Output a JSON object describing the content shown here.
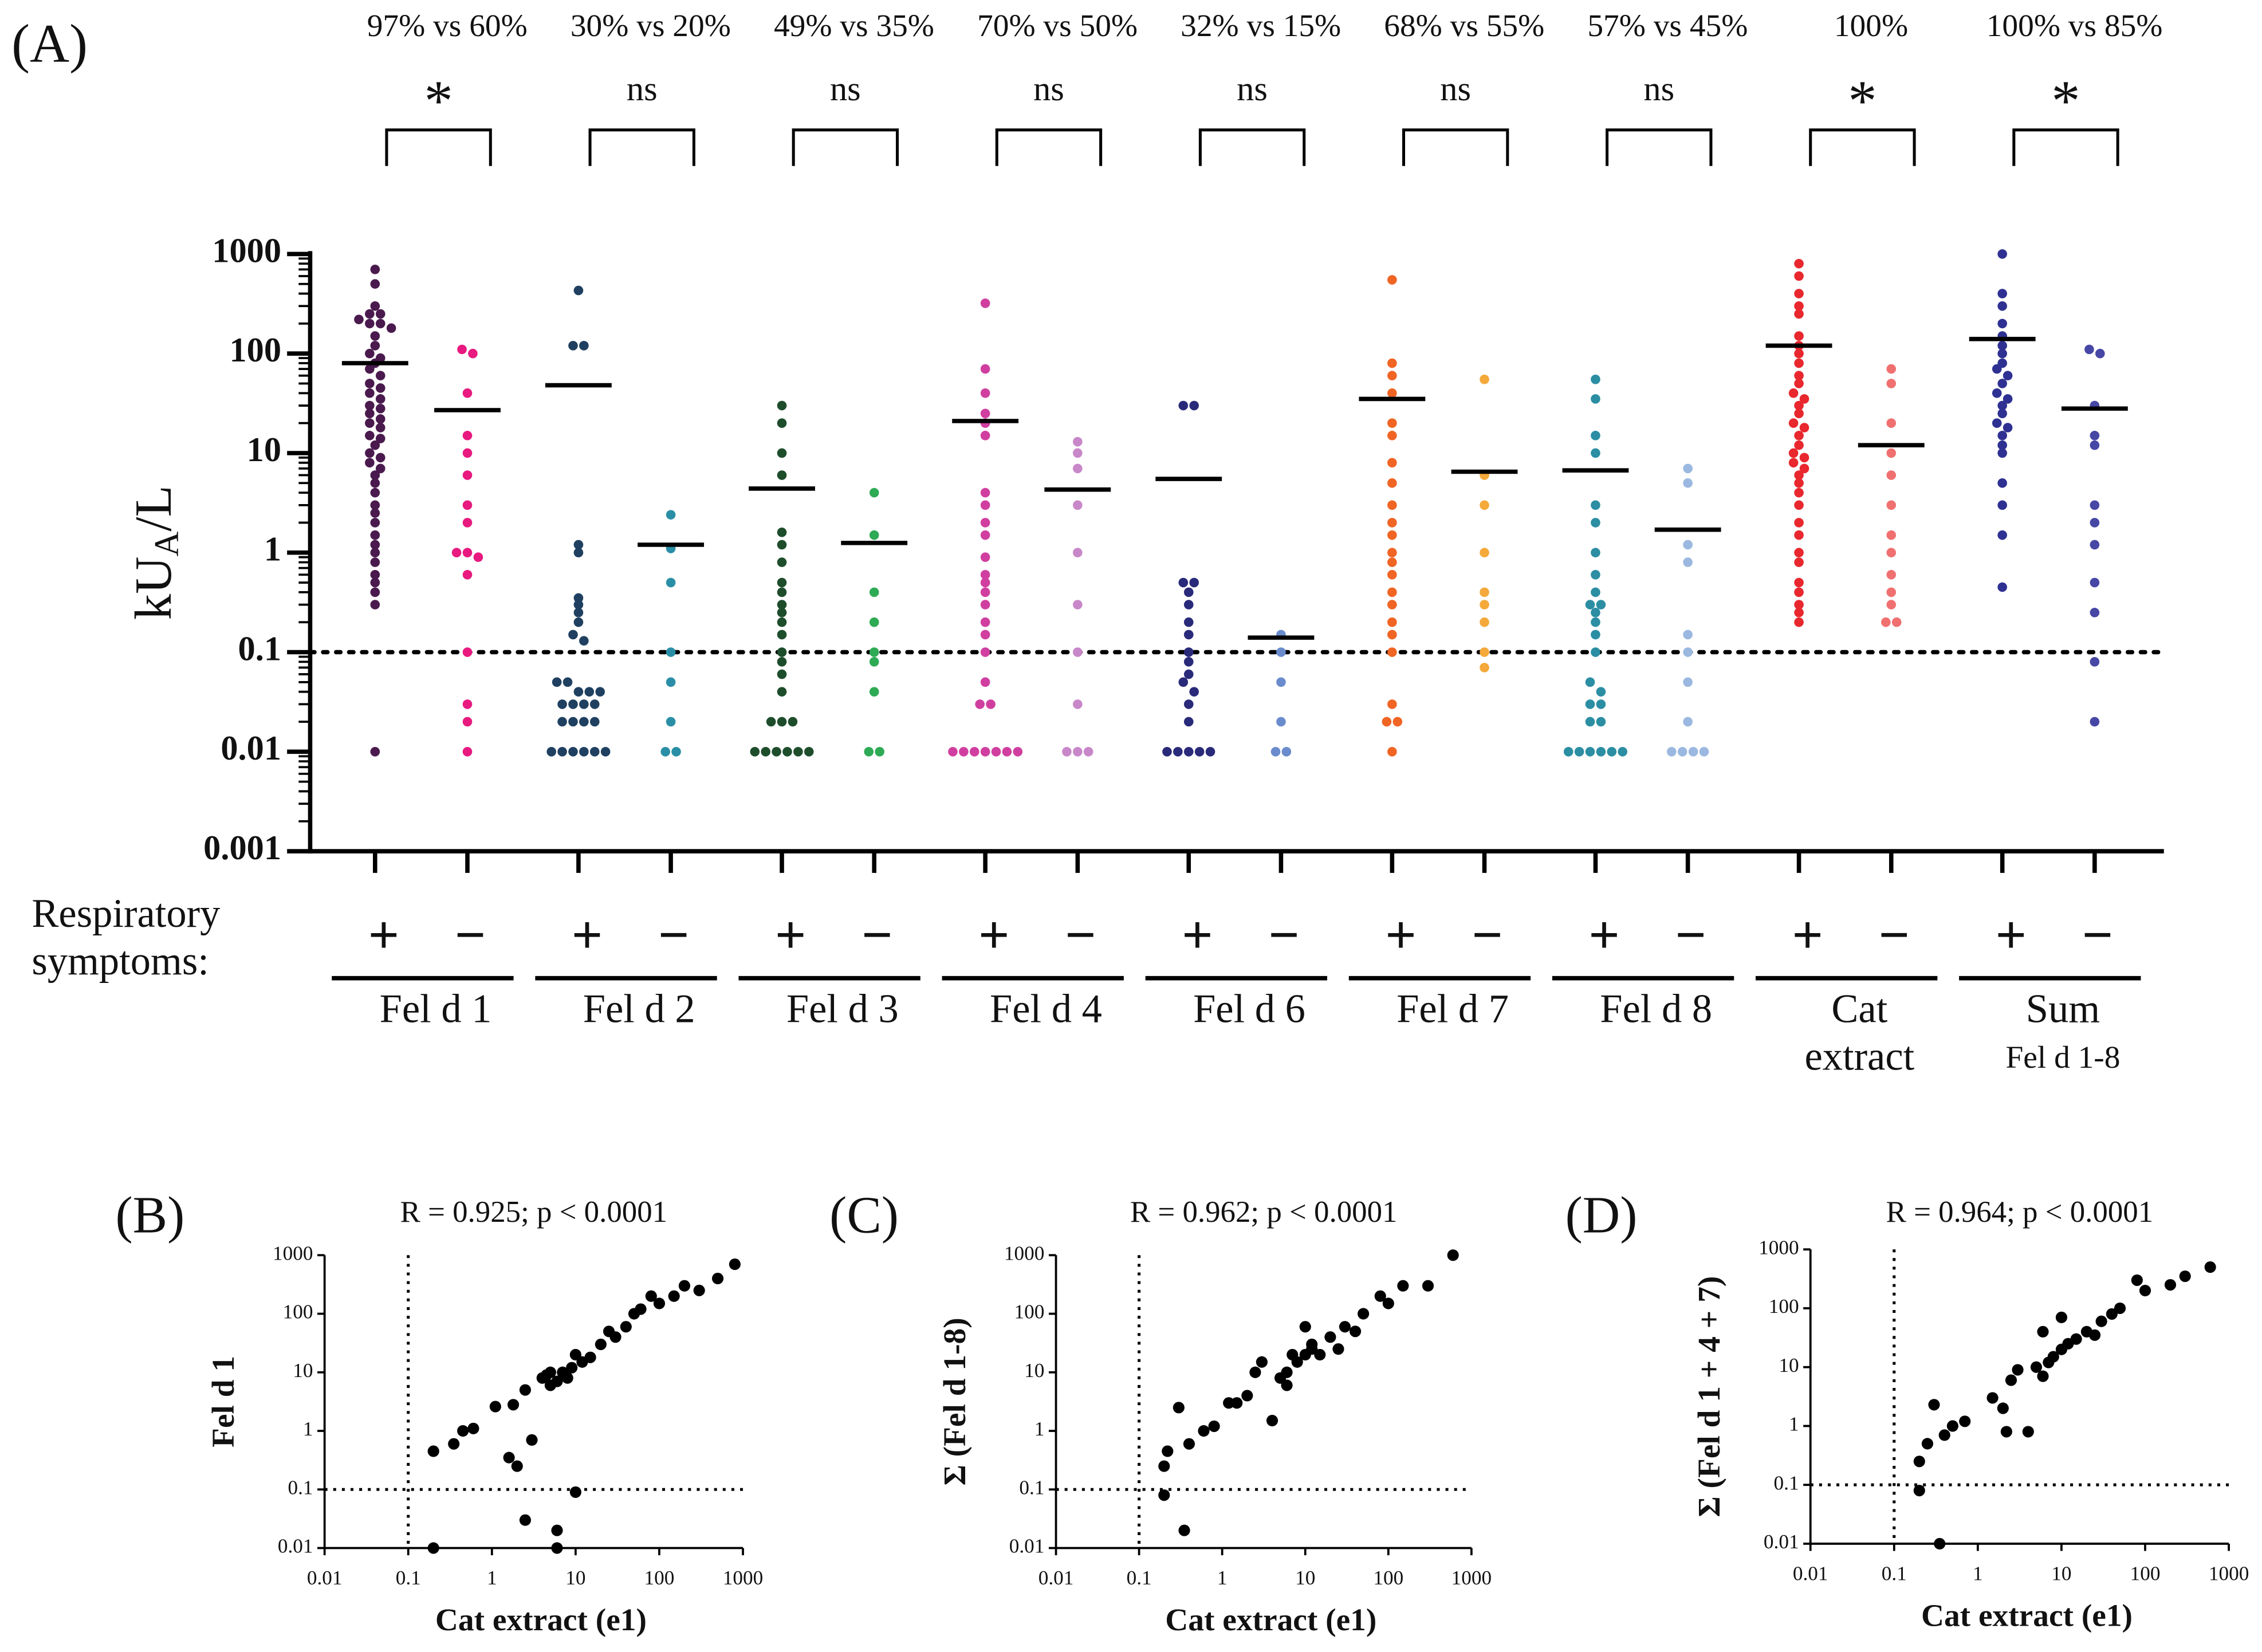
{
  "chart_data": [
    {
      "type": "dotplot",
      "panel": "(A)",
      "ylabel": {
        "main": "kU",
        "sub": "A",
        "rest": "/L"
      },
      "log": true,
      "ylim": [
        0.001,
        1000
      ],
      "yticks": [
        0.001,
        0.01,
        0.1,
        1,
        10,
        100,
        1000
      ],
      "threshold": 0.1,
      "row_label": [
        "Respiratory",
        "symptoms:"
      ],
      "groups": [
        {
          "name": [
            "Fel d 1"
          ],
          "comparison": "97% vs 60%",
          "significance": "*",
          "series": [
            {
              "symptom": "+",
              "color": "#4a1a4e",
              "mean": 80,
              "values": [
                700,
                500,
                300,
                250,
                250,
                220,
                200,
                200,
                180,
                150,
                120,
                100,
                90,
                80,
                70,
                60,
                50,
                45,
                40,
                35,
                30,
                28,
                25,
                22,
                20,
                18,
                15,
                14,
                12,
                10,
                9,
                8,
                7,
                6,
                5,
                4,
                3,
                2.5,
                2,
                1.5,
                1.2,
                1,
                0.8,
                0.6,
                0.5,
                0.4,
                0.3,
                0.01
              ]
            },
            {
              "symptom": "−",
              "color": "#e8197f",
              "mean": 27,
              "values": [
                110,
                100,
                40,
                15,
                10,
                6,
                3,
                2,
                1,
                1,
                0.9,
                0.6,
                0.1,
                0.03,
                0.02,
                0.01
              ]
            }
          ]
        },
        {
          "name": [
            "Fel d 2"
          ],
          "comparison": "30% vs 20%",
          "significance": "ns",
          "series": [
            {
              "symptom": "+",
              "color": "#1f4060",
              "mean": 48,
              "values": [
                430,
                120,
                120,
                1.2,
                1,
                0.35,
                0.3,
                0.25,
                0.2,
                0.15,
                0.13,
                0.05,
                0.05,
                0.04,
                0.04,
                0.04,
                0.03,
                0.03,
                0.03,
                0.03,
                0.02,
                0.02,
                0.02,
                0.02,
                0.01,
                0.01,
                0.01,
                0.01,
                0.01,
                0.01
              ]
            },
            {
              "symptom": "−",
              "color": "#2a8fa6",
              "mean": 1.2,
              "values": [
                2.4,
                1.1,
                0.5,
                0.1,
                0.05,
                0.02,
                0.01,
                0.01
              ]
            }
          ]
        },
        {
          "name": [
            "Fel d 3"
          ],
          "comparison": "49% vs 35%",
          "significance": "ns",
          "series": [
            {
              "symptom": "+",
              "color": "#1e4d2b",
              "mean": 4.4,
              "values": [
                30,
                20,
                10,
                6,
                1.6,
                1.2,
                0.8,
                0.5,
                0.4,
                0.3,
                0.25,
                0.2,
                0.15,
                0.1,
                0.08,
                0.06,
                0.04,
                0.02,
                0.02,
                0.02,
                0.01,
                0.01,
                0.01,
                0.01,
                0.01,
                0.01
              ]
            },
            {
              "symptom": "−",
              "color": "#2eaa55",
              "mean": 1.25,
              "values": [
                4,
                1.5,
                0.4,
                0.2,
                0.1,
                0.08,
                0.04,
                0.01,
                0.01
              ]
            }
          ]
        },
        {
          "name": [
            "Fel d 4"
          ],
          "comparison": "70% vs 50%",
          "significance": "ns",
          "series": [
            {
              "symptom": "+",
              "color": "#d03fa0",
              "mean": 21,
              "values": [
                320,
                70,
                40,
                25,
                20,
                15,
                4,
                3,
                2,
                1.5,
                0.9,
                0.6,
                0.5,
                0.4,
                0.3,
                0.2,
                0.15,
                0.1,
                0.05,
                0.03,
                0.03,
                0.01,
                0.01,
                0.01,
                0.01,
                0.01,
                0.01,
                0.01
              ]
            },
            {
              "symptom": "−",
              "color": "#c887c9",
              "mean": 4.3,
              "values": [
                13,
                10,
                7,
                3,
                1,
                0.3,
                0.1,
                0.03,
                0.01,
                0.01,
                0.01
              ]
            }
          ]
        },
        {
          "name": [
            "Fel d 6"
          ],
          "comparison": "32% vs 15%",
          "significance": "ns",
          "series": [
            {
              "symptom": "+",
              "color": "#2a2a7a",
              "mean": 5.5,
              "values": [
                30,
                30,
                0.5,
                0.5,
                0.4,
                0.3,
                0.2,
                0.15,
                0.1,
                0.08,
                0.06,
                0.05,
                0.04,
                0.03,
                0.02,
                0.01,
                0.01,
                0.01,
                0.01,
                0.01
              ]
            },
            {
              "symptom": "−",
              "color": "#6a8ccc",
              "mean": 0.14,
              "values": [
                0.15,
                0.1,
                0.05,
                0.02,
                0.01,
                0.01
              ]
            }
          ]
        },
        {
          "name": [
            "Fel d 7"
          ],
          "comparison": "68% vs 55%",
          "significance": "ns",
          "series": [
            {
              "symptom": "+",
              "color": "#f06424",
              "mean": 35,
              "values": [
                550,
                80,
                60,
                40,
                20,
                15,
                8,
                5,
                3,
                2,
                1.5,
                1,
                0.8,
                0.6,
                0.4,
                0.3,
                0.2,
                0.15,
                0.1,
                0.03,
                0.02,
                0.02,
                0.01
              ]
            },
            {
              "symptom": "−",
              "color": "#f4a93a",
              "mean": 6.5,
              "values": [
                55,
                6,
                3,
                1,
                0.4,
                0.3,
                0.2,
                0.1,
                0.07
              ]
            }
          ]
        },
        {
          "name": [
            "Fel d 8"
          ],
          "comparison": "57% vs 45%",
          "significance": "ns",
          "series": [
            {
              "symptom": "+",
              "color": "#2b8ea3",
              "mean": 6.7,
              "values": [
                55,
                35,
                15,
                10,
                3,
                2,
                1,
                0.6,
                0.4,
                0.3,
                0.3,
                0.25,
                0.2,
                0.15,
                0.1,
                0.05,
                0.04,
                0.03,
                0.03,
                0.02,
                0.02,
                0.01,
                0.01,
                0.01,
                0.01,
                0.01,
                0.01
              ]
            },
            {
              "symptom": "−",
              "color": "#9bb8e0",
              "mean": 1.7,
              "values": [
                7,
                5,
                1.2,
                0.8,
                0.15,
                0.1,
                0.05,
                0.02,
                0.01,
                0.01,
                0.01,
                0.01
              ]
            }
          ]
        },
        {
          "name": [
            "Cat",
            "extract"
          ],
          "comparison": "100%",
          "significance": "*",
          "series": [
            {
              "symptom": "+",
              "color": "#e8282e",
              "mean": 120,
              "values": [
                800,
                600,
                400,
                300,
                250,
                150,
                120,
                100,
                80,
                60,
                50,
                40,
                35,
                30,
                25,
                20,
                18,
                15,
                12,
                10,
                9,
                8,
                7,
                6,
                5,
                4,
                3,
                2,
                1.5,
                1,
                0.8,
                0.5,
                0.4,
                0.3,
                0.25,
                0.2
              ]
            },
            {
              "symptom": "−",
              "color": "#f07070",
              "mean": 12,
              "values": [
                70,
                50,
                20,
                10,
                6,
                3,
                1.5,
                1,
                0.6,
                0.4,
                0.3,
                0.2,
                0.2
              ]
            }
          ]
        },
        {
          "name": [
            "Sum",
            "Fel d 1-8"
          ],
          "comparison": "100% vs 85%",
          "significance": "*",
          "series": [
            {
              "symptom": "+",
              "color": "#2e3192",
              "mean": 140,
              "values": [
                1000,
                400,
                300,
                200,
                150,
                120,
                100,
                80,
                70,
                60,
                50,
                40,
                35,
                30,
                25,
                20,
                18,
                15,
                12,
                10,
                5,
                3,
                1.5,
                0.45
              ]
            },
            {
              "symptom": "−",
              "color": "#4747a6",
              "mean": 28,
              "values": [
                110,
                100,
                30,
                15,
                12,
                3,
                2,
                1.2,
                0.5,
                0.25,
                0.08,
                0.02
              ]
            }
          ]
        }
      ]
    },
    {
      "type": "scatter",
      "panel": "(B)",
      "title": "R = 0.925; p < 0.0001",
      "xlabel": "Cat extract (e1)",
      "ylabel": "Fel d 1",
      "log": true,
      "xlim": [
        0.01,
        1000
      ],
      "ylim": [
        0.01,
        1000
      ],
      "xticks": [
        0.01,
        0.1,
        1,
        10,
        100,
        1000
      ],
      "yticks": [
        0.01,
        0.1,
        1,
        10,
        100,
        1000
      ],
      "threshold": 0.1,
      "color": "#000000",
      "x": [
        0.2,
        0.2,
        0.35,
        0.45,
        0.6,
        1.1,
        1.6,
        1.8,
        2,
        2.5,
        2.5,
        3,
        4,
        4.5,
        5,
        5,
        6,
        6,
        6,
        7,
        8,
        9,
        10,
        10,
        12,
        15,
        20,
        25,
        30,
        40,
        50,
        60,
        80,
        100,
        150,
        200,
        300,
        500,
        800
      ],
      "y": [
        0.01,
        0.45,
        0.6,
        1,
        1.1,
        2.6,
        0.35,
        2.8,
        0.25,
        5,
        0.03,
        0.7,
        8,
        9,
        6,
        10,
        0.02,
        0.01,
        7,
        10,
        8,
        12,
        20,
        0.09,
        15,
        18,
        30,
        50,
        40,
        60,
        100,
        120,
        200,
        150,
        200,
        300,
        250,
        400,
        700
      ]
    },
    {
      "type": "scatter",
      "panel": "(C)",
      "title": "R = 0.962; p < 0.0001",
      "xlabel": "Cat extract (e1)",
      "ylabel": "Σ (Fel d 1-8)",
      "log": true,
      "xlim": [
        0.01,
        1000
      ],
      "ylim": [
        0.01,
        1000
      ],
      "xticks": [
        0.01,
        0.1,
        1,
        10,
        100,
        1000
      ],
      "yticks": [
        0.01,
        0.1,
        1,
        10,
        100,
        1000
      ],
      "threshold": 0.1,
      "color": "#000000",
      "x": [
        0.2,
        0.2,
        0.22,
        0.3,
        0.35,
        0.4,
        0.6,
        0.8,
        1.2,
        1.5,
        2,
        2.5,
        3,
        4,
        5,
        6,
        6,
        7,
        8,
        10,
        10,
        12,
        12,
        15,
        20,
        25,
        30,
        40,
        50,
        80,
        100,
        150,
        300,
        600
      ],
      "y": [
        0.08,
        0.25,
        0.45,
        2.5,
        0.02,
        0.6,
        1,
        1.2,
        3,
        3,
        4,
        10,
        15,
        1.5,
        8,
        6,
        10,
        20,
        15,
        20,
        60,
        25,
        30,
        20,
        40,
        25,
        60,
        50,
        100,
        200,
        150,
        300,
        300,
        1000
      ]
    },
    {
      "type": "scatter",
      "panel": "(D)",
      "title": "R = 0.964; p < 0.0001",
      "xlabel": "Cat extract (e1)",
      "ylabel": "Σ (Fel d 1 + 4 + 7)",
      "log": true,
      "xlim": [
        0.01,
        1000
      ],
      "ylim": [
        0.01,
        1000
      ],
      "xticks": [
        0.01,
        0.1,
        1,
        10,
        100,
        1000
      ],
      "yticks": [
        0.01,
        0.1,
        1,
        10,
        100,
        1000
      ],
      "threshold": 0.1,
      "color": "#000000",
      "x": [
        0.2,
        0.2,
        0.25,
        0.3,
        0.35,
        0.4,
        0.5,
        0.7,
        1.5,
        2,
        2.2,
        2.5,
        3,
        4,
        5,
        6,
        6,
        7,
        8,
        10,
        10,
        12,
        15,
        20,
        25,
        30,
        40,
        50,
        80,
        100,
        200,
        300,
        600
      ],
      "y": [
        0.08,
        0.25,
        0.5,
        2.3,
        0.01,
        0.7,
        1,
        1.2,
        3,
        2,
        0.8,
        6,
        9,
        0.8,
        10,
        7,
        40,
        12,
        15,
        70,
        20,
        25,
        30,
        40,
        35,
        60,
        80,
        100,
        300,
        200,
        250,
        350,
        500
      ]
    }
  ]
}
